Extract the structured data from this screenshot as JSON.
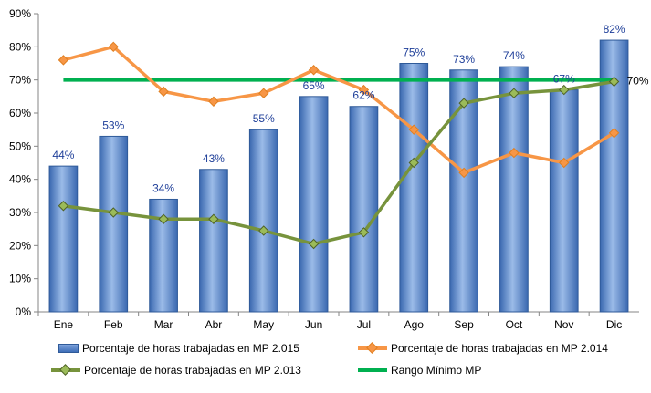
{
  "chart_data": {
    "type": "bar",
    "categories": [
      "Ene",
      "Feb",
      "Mar",
      "Abr",
      "May",
      "Jun",
      "Jul",
      "Ago",
      "Sep",
      "Oct",
      "Nov",
      "Dic"
    ],
    "ylim": [
      0,
      90
    ],
    "yticks": [
      "0%",
      "10%",
      "20%",
      "30%",
      "40%",
      "50%",
      "60%",
      "70%",
      "80%",
      "90%"
    ],
    "grid": false,
    "legend_placement": "bottom",
    "bar_series": {
      "name": "Porcentaje de horas trabajadas en MP 2.015",
      "values": [
        44,
        53,
        34,
        43,
        55,
        65,
        62,
        75,
        73,
        74,
        67,
        82
      ],
      "labels": [
        "44%",
        "53%",
        "34%",
        "43%",
        "55%",
        "65%",
        "62%",
        "75%",
        "73%",
        "74%",
        "67%",
        "82%"
      ],
      "color": "#4f81bd"
    },
    "line_series": [
      {
        "name": "Porcentaje de horas trabajadas en MP 2.014",
        "values": [
          76,
          80,
          66.5,
          63.5,
          66,
          73,
          67,
          55,
          42,
          48,
          45,
          54
        ],
        "color": "#f79646"
      },
      {
        "name": "Porcentaje de horas trabajadas en MP 2.013",
        "values": [
          32,
          30,
          28,
          28,
          24.5,
          20.5,
          24,
          45,
          63,
          66,
          67,
          69.5
        ],
        "color": "#77933c"
      }
    ],
    "reference_line": {
      "name": "Rango Mínimo MP",
      "value": 70,
      "label": "70%",
      "color": "#00b050"
    }
  }
}
